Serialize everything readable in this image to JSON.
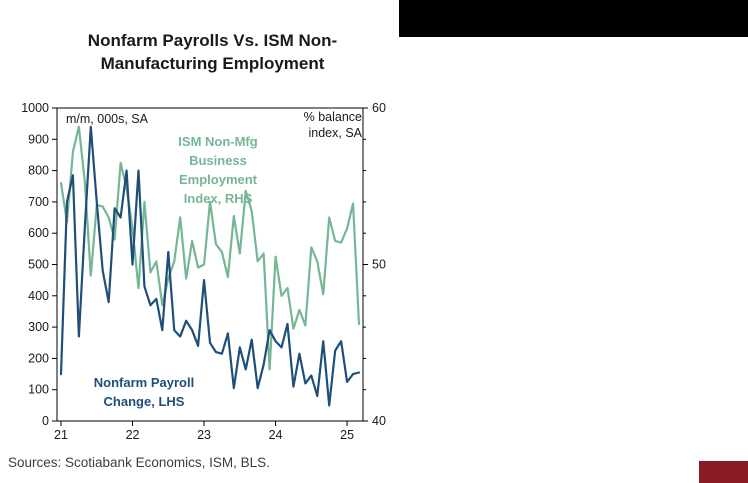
{
  "page": {
    "title_line1": "Nonfarm Payrolls Vs. ISM Non-",
    "title_line2": "Manufacturing Employment",
    "sources": "Sources: Scotiabank Economics, ISM, BLS."
  },
  "decor": {
    "top_bar_color": "#000000",
    "corner_box_color": "#8a1a24"
  },
  "chart_data": {
    "type": "line",
    "title": "Nonfarm Payrolls Vs. ISM Non-Manufacturing Employment",
    "grid": false,
    "legend_position": "inline-annotations",
    "x_start": "2021-01",
    "frequency": "monthly",
    "left_axis": {
      "label": "m/m, 000s, SA",
      "min": 0,
      "max": 1000,
      "tick_step": 100
    },
    "right_axis": {
      "label": "% balance index, SA",
      "label_display": "% balance\nindex, SA",
      "min": 40,
      "max": 60,
      "tick_step": 10,
      "minor_tick_step": 2
    },
    "x_axis": {
      "tick_labels": [
        "21",
        "22",
        "23",
        "24",
        "25"
      ],
      "tick_positions": [
        0,
        12,
        24,
        36,
        48
      ]
    },
    "annotations": [
      {
        "id": "ism-label",
        "text": "ISM Non-Mfg\nBusiness\nEmployment\nIndex, RHS",
        "color": "#74b795"
      },
      {
        "id": "payrolls-label",
        "text": "Nonfarm Payroll\nChange, LHS",
        "color": "#1f4e79"
      }
    ],
    "series": [
      {
        "name": "Nonfarm Payroll Change, LHS",
        "axis": "left",
        "color": "#1f4e79",
        "values": [
          150,
          700,
          785,
          270,
          620,
          940,
          700,
          480,
          380,
          680,
          650,
          800,
          500,
          800,
          430,
          370,
          390,
          290,
          540,
          290,
          270,
          320,
          290,
          240,
          450,
          250,
          220,
          215,
          280,
          105,
          235,
          165,
          260,
          105,
          180,
          290,
          255,
          235,
          310,
          110,
          215,
          120,
          145,
          80,
          255,
          50,
          225,
          255,
          125,
          150,
          155
        ]
      },
      {
        "name": "ISM Non-Mfg Business Employment Index, RHS",
        "axis": "right",
        "color": "#74b795",
        "values": [
          55.2,
          52.7,
          57.2,
          58.8,
          55.3,
          49.3,
          53.8,
          53.7,
          53.0,
          51.6,
          56.5,
          54.9,
          52.3,
          48.5,
          54.0,
          49.5,
          50.2,
          47.4,
          49.1,
          50.2,
          53.0,
          49.1,
          51.5,
          49.8,
          50.0,
          54.0,
          51.3,
          50.8,
          49.2,
          53.1,
          50.7,
          54.7,
          53.4,
          50.2,
          50.7,
          43.3,
          50.5,
          48.0,
          48.5,
          45.9,
          47.1,
          46.1,
          51.1,
          50.2,
          48.1,
          53.0,
          51.5,
          51.4,
          52.3,
          53.9,
          46.2
        ]
      }
    ]
  }
}
